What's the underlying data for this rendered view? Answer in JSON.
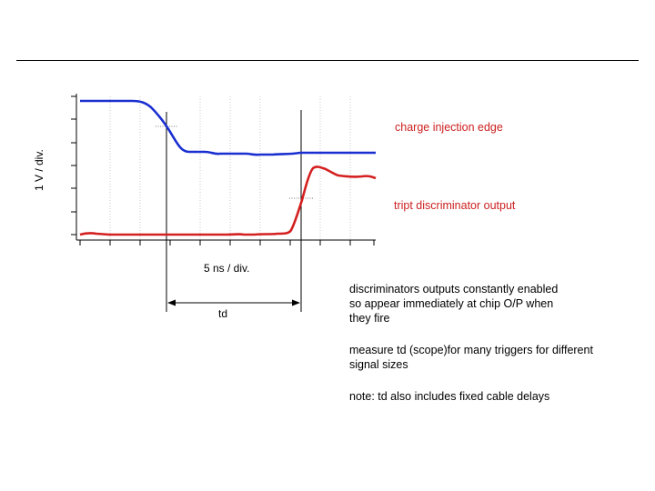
{
  "labels": {
    "charge_injection": "charge injection edge",
    "tript_output": "tript discriminator output",
    "y_axis": "1 V / div.",
    "x_axis": "5 ns / div.",
    "td": "td"
  },
  "notes": {
    "line1": "discriminators outputs constantly enabled so appear immediately at chip O/P when they fire",
    "line2": "measure td (scope)for many triggers for different signal sizes",
    "line3": "note: td also includes fixed cable delays"
  },
  "colors": {
    "charge_trace": "#1a2fd0",
    "tript_trace": "#d42020",
    "label_text": "#cc2020"
  }
}
